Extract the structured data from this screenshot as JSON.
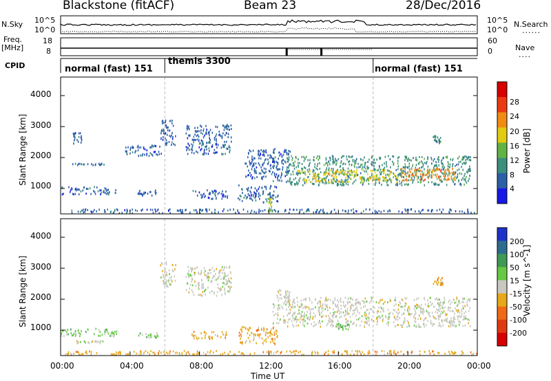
{
  "header": {
    "radar": "Blackstone (fitACF)",
    "beam": "Beam 23",
    "date": "28/Dec/2016"
  },
  "strips": {
    "nsky_label": "N.Sky",
    "nsearch_label": "N.Search",
    "nsearch_glyph": "......",
    "freq_label": "Freq.",
    "freq_unit": "[MHz]",
    "nave_label": "Nave",
    "nave_glyph": "....",
    "cpid_label": "CPID",
    "noise_ticks_left": [
      "10^5",
      "10^0"
    ],
    "noise_ticks_right": [
      "10^5",
      "10^0"
    ],
    "freq_ticks_left": [
      "18",
      "8"
    ],
    "nave_ticks_right": [
      "60",
      "0"
    ]
  },
  "cpid_modes": [
    {
      "label": "normal (fast) 151",
      "start_hr": 0
    },
    {
      "label": "themis 3300",
      "start_hr": 6
    },
    {
      "label": "normal (fast) 151",
      "start_hr": 18
    }
  ],
  "chart_data": [
    {
      "type": "heatmap",
      "name": "power",
      "ylabel": "Slant Range [km]",
      "yticks": [
        "1000",
        "2000",
        "3000",
        "4000"
      ],
      "ylim": [
        180,
        4600
      ],
      "xlim": [
        0,
        24
      ],
      "colorbar_label": "Power [dB]",
      "colorbar_ticks": [
        "4",
        "8",
        "12",
        "16",
        "20",
        "24",
        "28"
      ],
      "colorbar_colors": [
        "#1818e6",
        "#2b5fa8",
        "#3c8f7c",
        "#62b345",
        "#e1cc12",
        "#f08c14",
        "#ec3a10",
        "#d60000"
      ],
      "bands": [
        {
          "t0": 0.6,
          "t1": 1.2,
          "r0": 2450,
          "r1": 2800,
          "level": 1
        },
        {
          "t0": 0.5,
          "t1": 2.5,
          "r0": 1750,
          "r1": 1800,
          "level": 1
        },
        {
          "t0": 3.7,
          "t1": 5.8,
          "r0": 2050,
          "r1": 2400,
          "level": 1
        },
        {
          "t0": 5.7,
          "t1": 6.6,
          "r0": 2400,
          "r1": 3200,
          "level": 1
        },
        {
          "t0": 7.2,
          "t1": 9.8,
          "r0": 2100,
          "r1": 3050,
          "level": 1
        },
        {
          "t0": 10.6,
          "t1": 12.3,
          "r0": 1300,
          "r1": 2250,
          "level": 1
        },
        {
          "t0": 0.0,
          "t1": 3.2,
          "r0": 800,
          "r1": 1050,
          "level": 1
        },
        {
          "t0": 4.4,
          "t1": 5.6,
          "r0": 750,
          "r1": 950,
          "level": 1
        },
        {
          "t0": 7.5,
          "t1": 9.6,
          "r0": 650,
          "r1": 950,
          "level": 1
        },
        {
          "t0": 10.2,
          "t1": 12.5,
          "r0": 550,
          "r1": 1100,
          "level": 1
        },
        {
          "t0": 0.2,
          "t1": 24.0,
          "r0": 200,
          "r1": 330,
          "level": 1
        },
        {
          "t0": 12.2,
          "t1": 13.2,
          "r0": 1200,
          "r1": 2300,
          "level": 1
        },
        {
          "t0": 13.0,
          "t1": 17.2,
          "r0": 1100,
          "r1": 2050,
          "level": 2
        },
        {
          "t0": 17.2,
          "t1": 23.6,
          "r0": 1100,
          "r1": 2050,
          "level": 2
        },
        {
          "t0": 13.6,
          "t1": 19.4,
          "r0": 1200,
          "r1": 1600,
          "level": 4
        },
        {
          "t0": 19.4,
          "t1": 23.0,
          "r0": 1250,
          "r1": 1650,
          "level": 5
        },
        {
          "t0": 21.4,
          "t1": 22.0,
          "r0": 2450,
          "r1": 2700,
          "level": 2
        },
        {
          "t0": 11.8,
          "t1": 12.2,
          "r0": 250,
          "r1": 700,
          "level": 3
        }
      ]
    },
    {
      "type": "heatmap",
      "name": "velocity",
      "ylabel": "Slant Range [km]",
      "yticks": [
        "1000",
        "2000",
        "3000",
        "4000"
      ],
      "ylim": [
        180,
        4600
      ],
      "xlim": [
        0,
        24
      ],
      "xticks": [
        "00:00",
        "04:00",
        "08:00",
        "12:00",
        "16:00",
        "20:00",
        "00:00"
      ],
      "xlabel": "Time UT",
      "colorbar_label": "Velocity [m s^-1]",
      "colorbar_ticks": [
        "200",
        "100",
        "50",
        "15",
        "-15",
        "-50",
        "-100",
        "-200"
      ],
      "colorbar_colors": [
        "#1e32c8",
        "#2d6c8f",
        "#3f9a55",
        "#66c843",
        "#c8c8c0",
        "#e6a818",
        "#f06a14",
        "#e03a10",
        "#d60000"
      ],
      "bands": [
        {
          "t0": 0.0,
          "t1": 3.2,
          "r0": 800,
          "r1": 1050,
          "level": 3
        },
        {
          "t0": 0.8,
          "t1": 2.5,
          "r0": 550,
          "r1": 650,
          "level": 4
        },
        {
          "t0": 4.4,
          "t1": 5.6,
          "r0": 750,
          "r1": 900,
          "level": 3
        },
        {
          "t0": 7.5,
          "t1": 9.6,
          "r0": 700,
          "r1": 950,
          "level": 5
        },
        {
          "t0": 10.2,
          "t1": 12.5,
          "r0": 550,
          "r1": 1100,
          "level": 5
        },
        {
          "t0": 0.2,
          "t1": 24.0,
          "r0": 200,
          "r1": 330,
          "level": 5
        },
        {
          "t0": 5.7,
          "t1": 6.6,
          "r0": 2400,
          "r1": 3200,
          "level": 4
        },
        {
          "t0": 7.2,
          "t1": 9.8,
          "r0": 2100,
          "r1": 3050,
          "level": 4
        },
        {
          "t0": 12.2,
          "t1": 13.2,
          "r0": 1200,
          "r1": 2300,
          "level": 4
        },
        {
          "t0": 13.0,
          "t1": 23.6,
          "r0": 1100,
          "r1": 2050,
          "level": 4
        },
        {
          "t0": 15.8,
          "t1": 16.6,
          "r0": 1000,
          "r1": 1200,
          "level": 3
        },
        {
          "t0": 21.4,
          "t1": 22.0,
          "r0": 2450,
          "r1": 2700,
          "level": 5
        }
      ]
    }
  ]
}
